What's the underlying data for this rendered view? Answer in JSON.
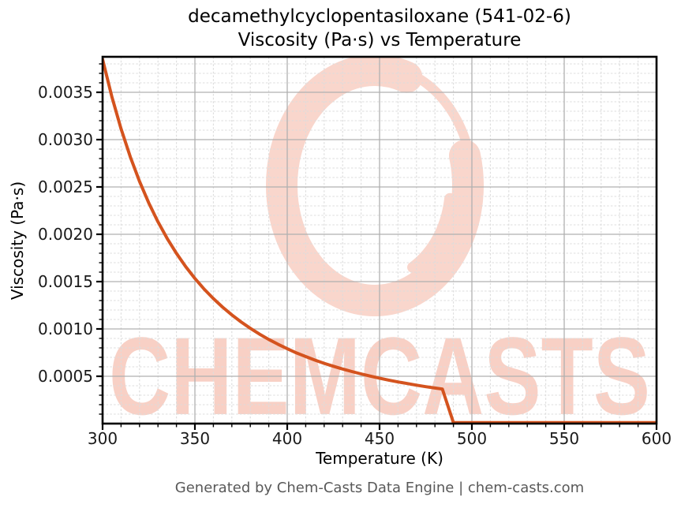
{
  "chart": {
    "title_line1": "decamethylcyclopentasiloxane (541-02-6)",
    "title_line2": "Viscosity (Pa·s) vs Temperature",
    "xlabel": "Temperature (K)",
    "ylabel": "Viscosity (Pa·s)"
  },
  "footer": {
    "text": "Generated by Chem-Casts Data Engine | chem-casts.com"
  },
  "watermark": {
    "text": "CHEMCASTS",
    "ring_color": "#f9d6cc",
    "text_color": "#f8d0c5"
  },
  "chart_data": {
    "type": "line",
    "title": "decamethylcyclopentasiloxane (541-02-6) Viscosity (Pa·s) vs Temperature",
    "xlabel": "Temperature (K)",
    "ylabel": "Viscosity (Pa·s)",
    "xlim": [
      300,
      600
    ],
    "ylim": [
      0,
      0.003875
    ],
    "x_major_ticks": [
      300,
      350,
      400,
      450,
      500,
      550,
      600
    ],
    "x_tick_labels": [
      "300",
      "350",
      "400",
      "450",
      "500",
      "550",
      "600"
    ],
    "x_minor_step": 10,
    "y_major_ticks": [
      0.0005,
      0.001,
      0.0015,
      0.002,
      0.0025,
      0.003,
      0.0035
    ],
    "y_tick_labels": [
      "0.0005",
      "0.0010",
      "0.0015",
      "0.0020",
      "0.0025",
      "0.0030",
      "0.0035"
    ],
    "y_minor_step": 0.0001,
    "grid": true,
    "legend": false,
    "line_color": "#d4531e",
    "major_grid_color": "#b0b0b0",
    "minor_grid_color": "#dcdcdc",
    "series": [
      {
        "name": "viscosity",
        "points": [
          [
            300,
            0.003848
          ],
          [
            305,
            0.003455
          ],
          [
            310,
            0.003114
          ],
          [
            315,
            0.002818
          ],
          [
            320,
            0.002559
          ],
          [
            325,
            0.002332
          ],
          [
            330,
            0.002132
          ],
          [
            335,
            0.001955
          ],
          [
            340,
            0.001798
          ],
          [
            345,
            0.001658
          ],
          [
            350,
            0.001533
          ],
          [
            355,
            0.001421
          ],
          [
            360,
            0.001321
          ],
          [
            365,
            0.00123
          ],
          [
            370,
            0.001148
          ],
          [
            375,
            0.001074
          ],
          [
            380,
            0.001007
          ],
          [
            385,
            0.000945
          ],
          [
            390,
            0.000889
          ],
          [
            395,
            0.000838
          ],
          [
            400,
            0.000791
          ],
          [
            405,
            0.000747
          ],
          [
            410,
            0.000708
          ],
          [
            415,
            0.000671
          ],
          [
            420,
            0.000637
          ],
          [
            425,
            0.000606
          ],
          [
            430,
            0.000577
          ],
          [
            435,
            0.00055
          ],
          [
            440,
            0.000525
          ],
          [
            445,
            0.000502
          ],
          [
            450,
            0.00048
          ],
          [
            455,
            0.000459
          ],
          [
            460,
            0.00044
          ],
          [
            465,
            0.000423
          ],
          [
            470,
            0.000406
          ],
          [
            475,
            0.00039
          ],
          [
            480,
            0.000376
          ],
          [
            484,
            0.000365
          ],
          [
            490,
            1e-05
          ],
          [
            500,
            1e-05
          ],
          [
            520,
            1e-05
          ],
          [
            550,
            1e-05
          ],
          [
            575,
            1e-05
          ],
          [
            600,
            1e-05
          ]
        ]
      }
    ]
  }
}
